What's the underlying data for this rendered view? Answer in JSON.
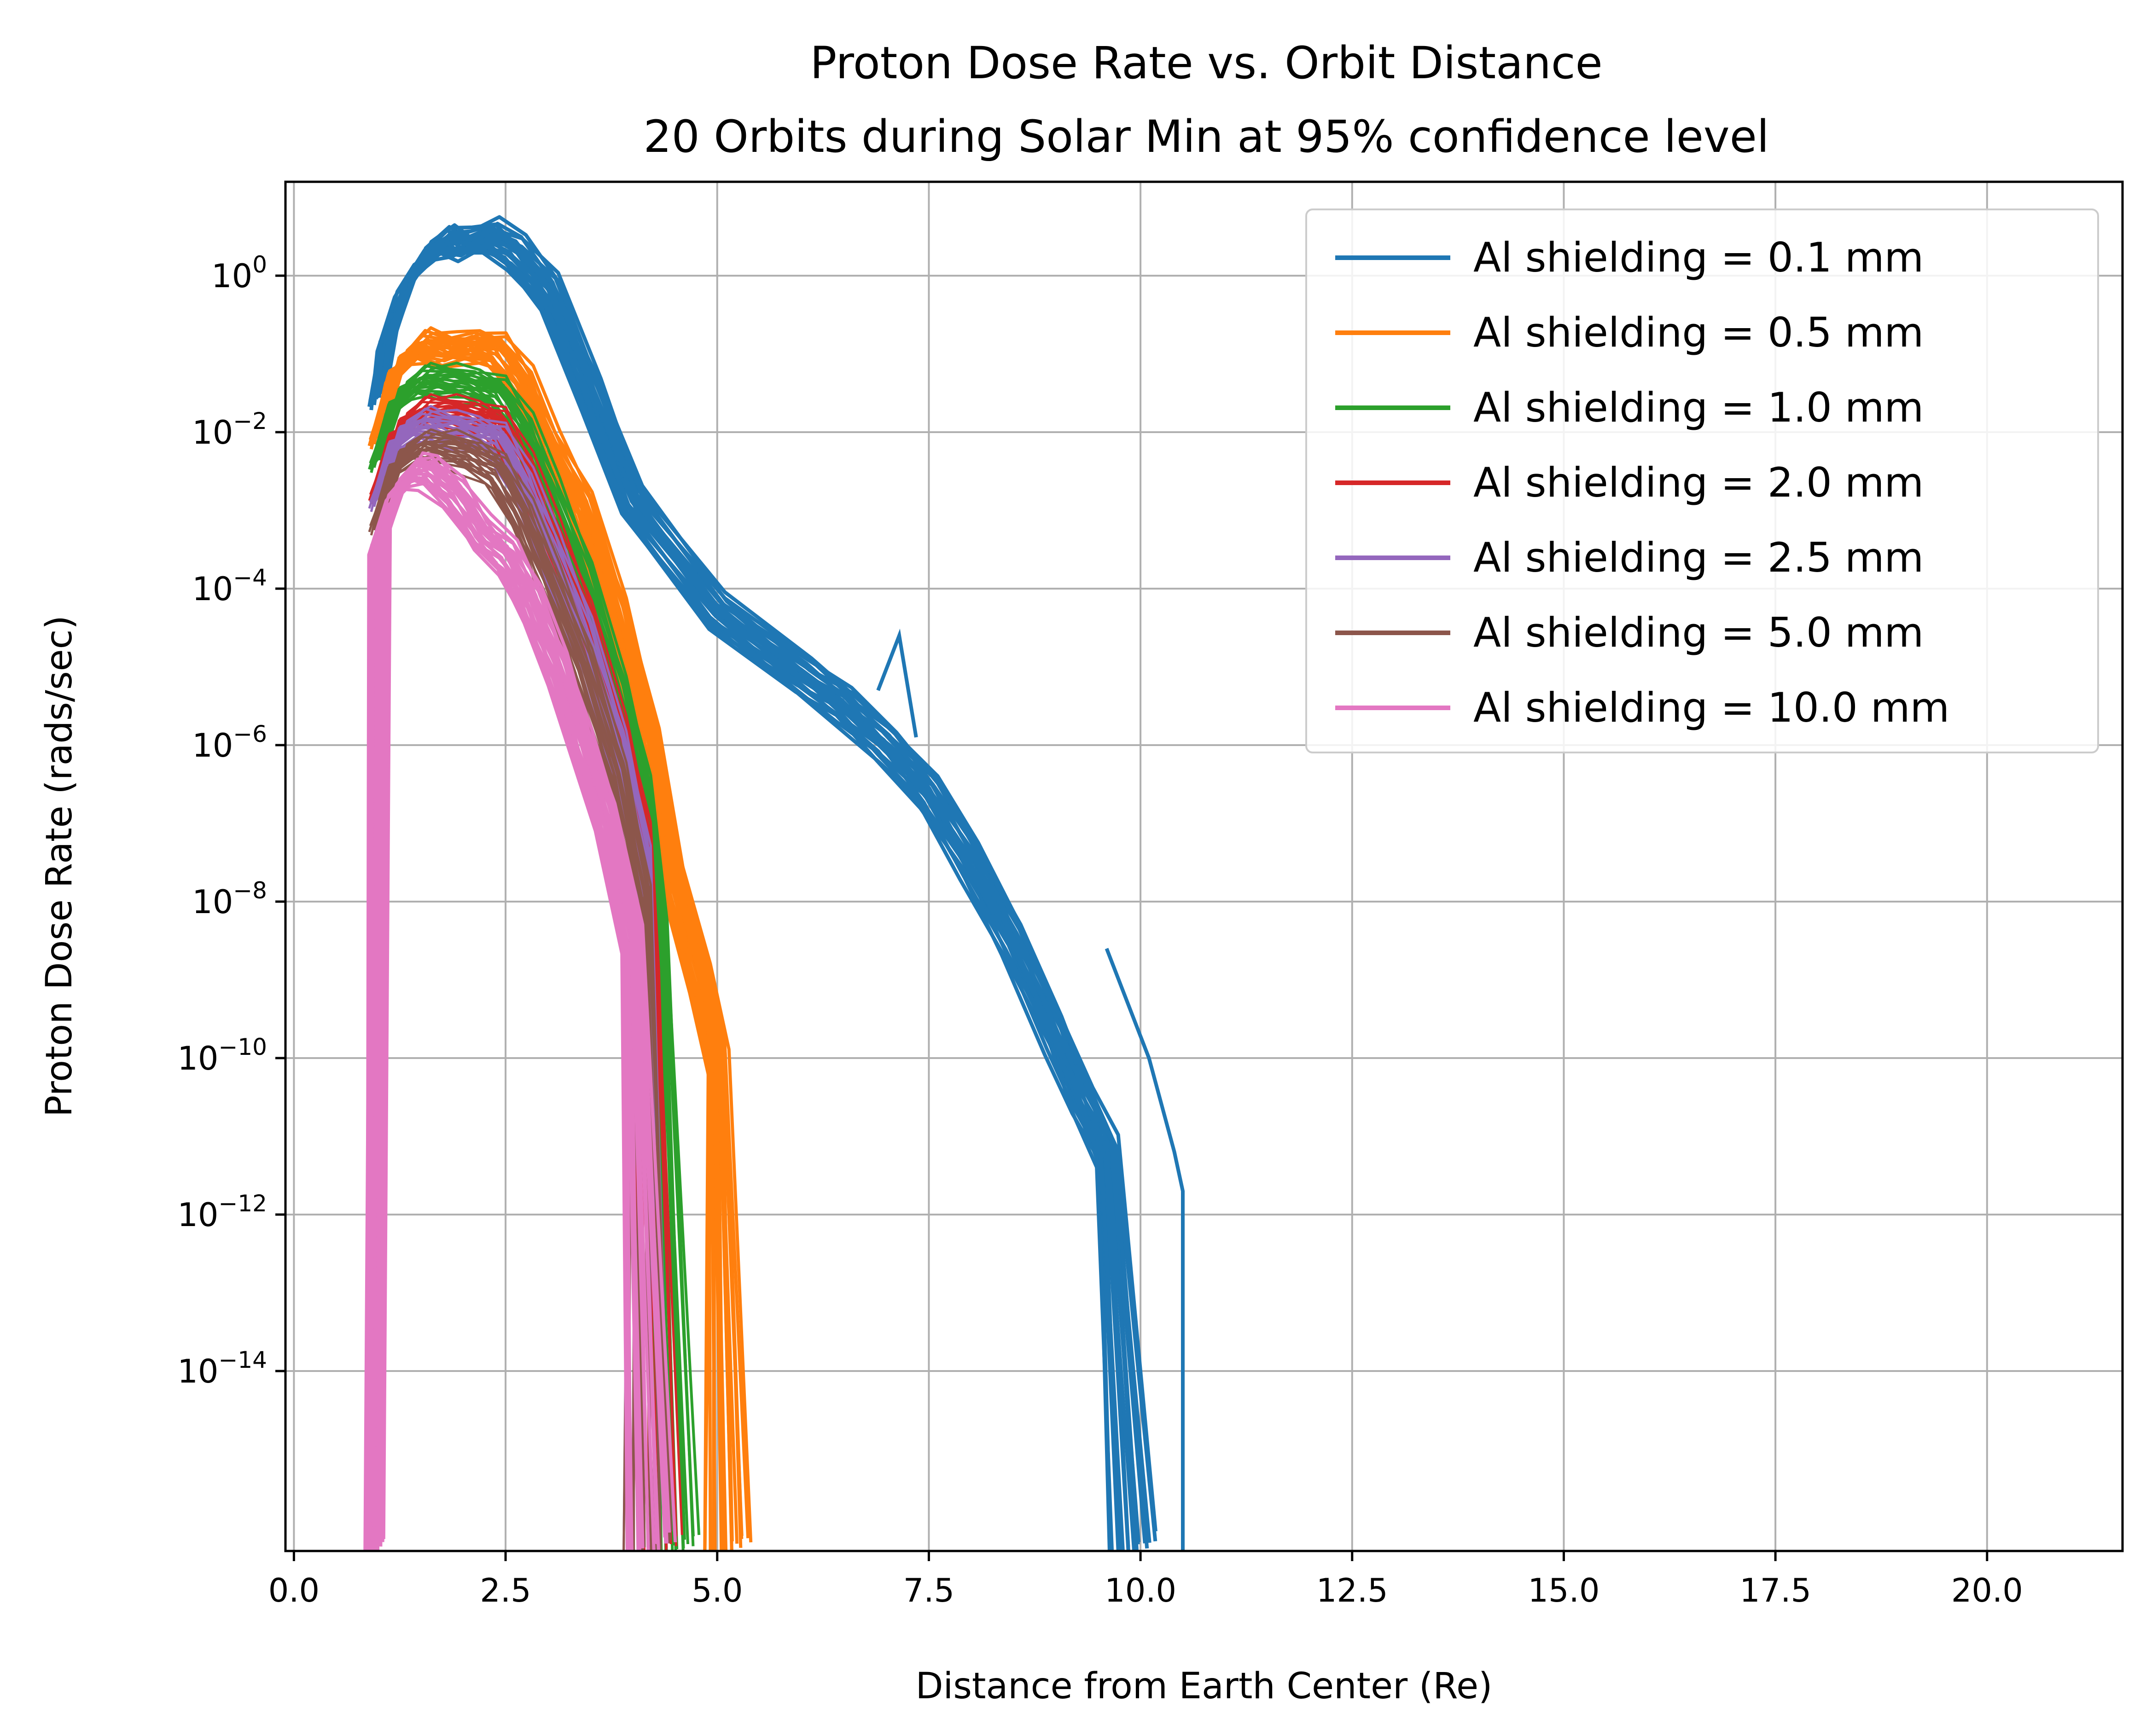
{
  "chart_data": {
    "type": "line",
    "title": "Proton Dose Rate vs. Orbit Distance",
    "subtitle": "20 Orbits during Solar Min at 95% confidence level",
    "xlabel": "Distance from Earth Center (Re)",
    "ylabel": "Proton Dose Rate (rads/sec)",
    "xlim": [
      -0.1,
      21.6
    ],
    "ylim_log10": [
      -16.3,
      1.2
    ],
    "y_scale": "log",
    "grid": true,
    "legend_position": "top-right",
    "x_ticks": [
      "0.0",
      "2.5",
      "5.0",
      "7.5",
      "10.0",
      "12.5",
      "15.0",
      "17.5",
      "20.0"
    ],
    "x_tick_values": [
      0,
      2.5,
      5,
      7.5,
      10,
      12.5,
      15,
      17.5,
      20
    ],
    "y_tick_exponents": [
      0,
      -2,
      -4,
      -6,
      -8,
      -10,
      -12,
      -14
    ],
    "y_tick_base": "10",
    "orbits_per_series": 20,
    "series": [
      {
        "name": "Al shielding = 0.1 mm",
        "color": "#1f77b4",
        "bundle_width": 8,
        "x": [
          1.0,
          1.1,
          1.3,
          1.5,
          1.8,
          2.0,
          2.3,
          2.6,
          3.0,
          3.5,
          4.0,
          5.0,
          6.0,
          6.5,
          7.0,
          7.5,
          8.0,
          8.5,
          9.0,
          9.3,
          9.6,
          9.9
        ],
        "log10_values": [
          -1.5,
          -0.8,
          -0.2,
          0.2,
          0.45,
          0.4,
          0.5,
          0.3,
          -0.2,
          -1.5,
          -2.9,
          -4.3,
          -5.1,
          -5.5,
          -6.0,
          -6.6,
          -7.5,
          -8.5,
          -9.7,
          -10.5,
          -11.2,
          -16.3
        ]
      },
      {
        "name": "Al shielding = 0.5 mm",
        "color": "#ff7f0e",
        "bundle_width": 7,
        "x": [
          1.0,
          1.2,
          1.5,
          1.8,
          2.1,
          2.4,
          2.7,
          3.0,
          3.4,
          3.8,
          4.2,
          4.5,
          4.8,
          5.0,
          5.1
        ],
        "log10_values": [
          -2.0,
          -1.2,
          -0.9,
          -0.95,
          -0.9,
          -0.95,
          -1.4,
          -2.2,
          -3.0,
          -4.3,
          -6.0,
          -7.8,
          -9.0,
          -10.0,
          -16.3
        ]
      },
      {
        "name": "Al shielding = 1.0 mm",
        "color": "#2ca02c",
        "bundle_width": 6,
        "x": [
          1.0,
          1.2,
          1.5,
          1.8,
          2.1,
          2.4,
          2.7,
          3.0,
          3.4,
          3.8,
          4.1,
          4.3,
          4.5
        ],
        "log10_values": [
          -2.3,
          -1.6,
          -1.35,
          -1.35,
          -1.4,
          -1.5,
          -2.0,
          -2.8,
          -3.9,
          -5.3,
          -6.6,
          -8.4,
          -16.3
        ]
      },
      {
        "name": "Al shielding = 2.0 mm",
        "color": "#d62728",
        "bundle_width": 5,
        "x": [
          1.0,
          1.2,
          1.5,
          1.8,
          2.1,
          2.4,
          2.7,
          3.0,
          3.4,
          3.8,
          4.1,
          4.2,
          4.3
        ],
        "log10_values": [
          -2.7,
          -2.0,
          -1.75,
          -1.75,
          -1.8,
          -1.9,
          -2.5,
          -3.3,
          -4.4,
          -5.8,
          -7.2,
          -9.0,
          -16.3
        ]
      },
      {
        "name": "Al shielding = 2.5 mm",
        "color": "#9467bd",
        "bundle_width": 5,
        "x": [
          1.0,
          1.2,
          1.5,
          1.8,
          2.1,
          2.4,
          2.7,
          3.0,
          3.4,
          3.8,
          4.1,
          4.2
        ],
        "log10_values": [
          -2.8,
          -2.1,
          -1.9,
          -1.95,
          -2.0,
          -2.1,
          -2.7,
          -3.5,
          -4.6,
          -6.0,
          -7.5,
          -16.3
        ]
      },
      {
        "name": "Al shielding = 5.0 mm",
        "color": "#8c564b",
        "bundle_width": 5,
        "x": [
          1.0,
          1.2,
          1.5,
          1.8,
          2.1,
          2.4,
          2.7,
          3.0,
          3.4,
          3.8,
          4.1,
          4.2
        ],
        "log10_values": [
          -3.1,
          -2.4,
          -2.2,
          -2.2,
          -2.3,
          -2.5,
          -3.1,
          -3.9,
          -5.0,
          -6.4,
          -8.0,
          -16.3
        ]
      },
      {
        "name": "Al shielding = 10.0 mm",
        "color": "#e377c2",
        "bundle_width": 7,
        "x": [
          0.95,
          1.0,
          1.2,
          1.4,
          1.6,
          1.9,
          2.2,
          2.5,
          2.8,
          3.1,
          3.4,
          3.7,
          4.0,
          4.2
        ],
        "log10_values": [
          -16.3,
          -3.4,
          -2.8,
          -2.5,
          -2.5,
          -2.8,
          -3.3,
          -3.6,
          -4.2,
          -5.0,
          -6.0,
          -7.0,
          -8.5,
          -16.3
        ]
      }
    ],
    "annotations_extra": {
      "blue_spike": {
        "x": [
          6.9,
          7.15,
          7.35
        ],
        "log10_values": [
          -5.3,
          -4.6,
          -5.9
        ]
      },
      "blue_outlier_tail": {
        "x": [
          9.6,
          10.1,
          10.4,
          10.5,
          10.5
        ],
        "log10_values": [
          -8.6,
          -10.0,
          -11.2,
          -11.7,
          -16.3
        ]
      }
    }
  }
}
